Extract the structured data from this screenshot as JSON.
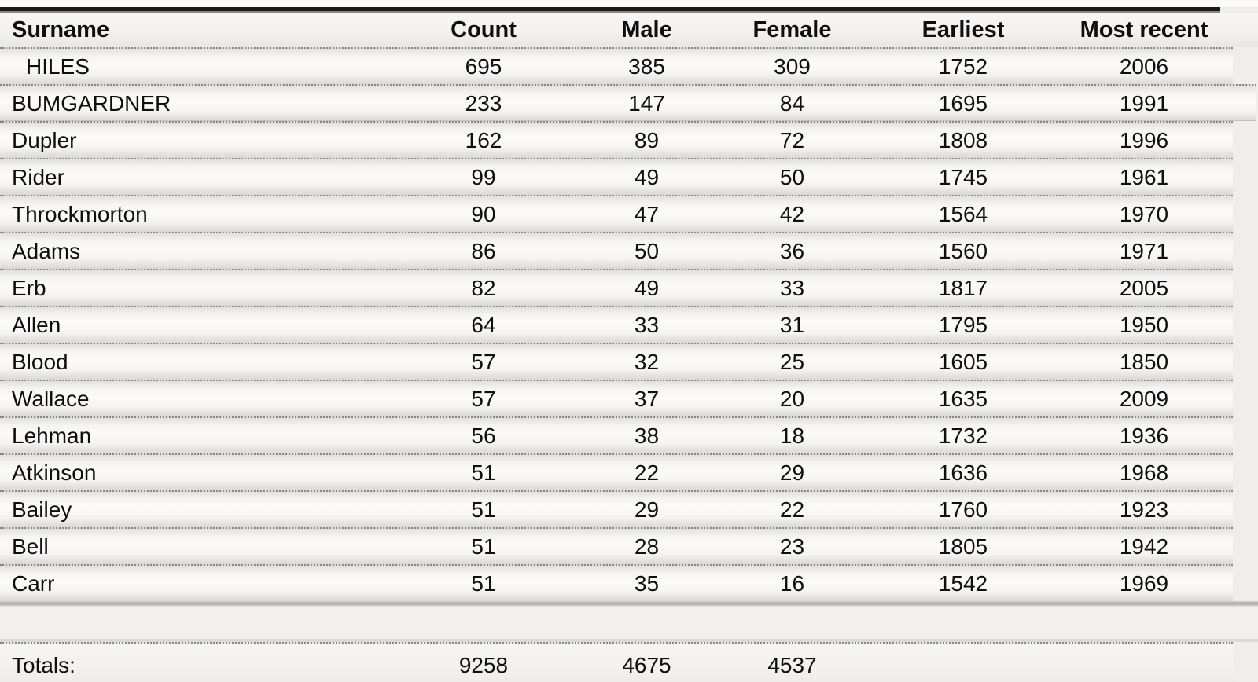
{
  "table": {
    "columns": [
      {
        "key": "surname",
        "label": "Surname"
      },
      {
        "key": "count",
        "label": "Count"
      },
      {
        "key": "male",
        "label": "Male"
      },
      {
        "key": "female",
        "label": "Female"
      },
      {
        "key": "earliest",
        "label": "Earliest"
      },
      {
        "key": "most_recent",
        "label": "Most recent"
      }
    ],
    "rows": [
      {
        "surname": "HILES",
        "count": 695,
        "male": 385,
        "female": 309,
        "earliest": 1752,
        "most_recent": 2006,
        "emphasized": false
      },
      {
        "surname": "BUMGARDNER",
        "count": 233,
        "male": 147,
        "female": 84,
        "earliest": 1695,
        "most_recent": 1991,
        "emphasized": true
      },
      {
        "surname": "Dupler",
        "count": 162,
        "male": 89,
        "female": 72,
        "earliest": 1808,
        "most_recent": 1996,
        "emphasized": false
      },
      {
        "surname": "Rider",
        "count": 99,
        "male": 49,
        "female": 50,
        "earliest": 1745,
        "most_recent": 1961,
        "emphasized": false
      },
      {
        "surname": "Throckmorton",
        "count": 90,
        "male": 47,
        "female": 42,
        "earliest": 1564,
        "most_recent": 1970,
        "emphasized": false
      },
      {
        "surname": "Adams",
        "count": 86,
        "male": 50,
        "female": 36,
        "earliest": 1560,
        "most_recent": 1971,
        "emphasized": false
      },
      {
        "surname": "Erb",
        "count": 82,
        "male": 49,
        "female": 33,
        "earliest": 1817,
        "most_recent": 2005,
        "emphasized": false
      },
      {
        "surname": "Allen",
        "count": 64,
        "male": 33,
        "female": 31,
        "earliest": 1795,
        "most_recent": 1950,
        "emphasized": false
      },
      {
        "surname": "Blood",
        "count": 57,
        "male": 32,
        "female": 25,
        "earliest": 1605,
        "most_recent": 1850,
        "emphasized": false
      },
      {
        "surname": "Wallace",
        "count": 57,
        "male": 37,
        "female": 20,
        "earliest": 1635,
        "most_recent": 2009,
        "emphasized": false
      },
      {
        "surname": "Lehman",
        "count": 56,
        "male": 38,
        "female": 18,
        "earliest": 1732,
        "most_recent": 1936,
        "emphasized": false
      },
      {
        "surname": "Atkinson",
        "count": 51,
        "male": 22,
        "female": 29,
        "earliest": 1636,
        "most_recent": 1968,
        "emphasized": false
      },
      {
        "surname": "Bailey",
        "count": 51,
        "male": 29,
        "female": 22,
        "earliest": 1760,
        "most_recent": 1923,
        "emphasized": false
      },
      {
        "surname": "Bell",
        "count": 51,
        "male": 28,
        "female": 23,
        "earliest": 1805,
        "most_recent": 1942,
        "emphasized": false
      },
      {
        "surname": "Carr",
        "count": 51,
        "male": 35,
        "female": 16,
        "earliest": 1542,
        "most_recent": 1969,
        "emphasized": false
      }
    ],
    "totals": {
      "label": "Totals:",
      "count": 9258,
      "male": 4675,
      "female": 4537,
      "earliest": "",
      "most_recent": ""
    }
  },
  "colors": {
    "page_background": "#f0eeeb",
    "row_band": "#fcfbf9",
    "top_rule": "#1a1a1a",
    "dotted_separator": "#8b8884",
    "text": "#0f0f0f"
  }
}
